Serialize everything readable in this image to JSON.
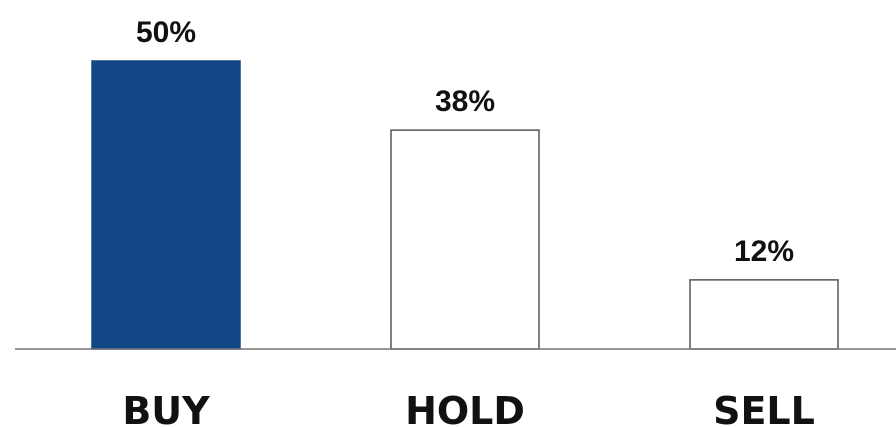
{
  "chart_data": {
    "type": "bar",
    "categories": [
      "BUY",
      "HOLD",
      "SELL"
    ],
    "values": [
      50,
      38,
      12
    ],
    "value_labels": [
      "50%",
      "38%",
      "12%"
    ],
    "highlight_category": "BUY",
    "colors": {
      "highlight_fill": "#134785",
      "default_fill": "#ffffff",
      "bar_stroke": "#555555",
      "axis": "#777777",
      "text": "#111111"
    },
    "ylim": [
      0,
      50
    ],
    "grid": false,
    "legend": "none"
  }
}
